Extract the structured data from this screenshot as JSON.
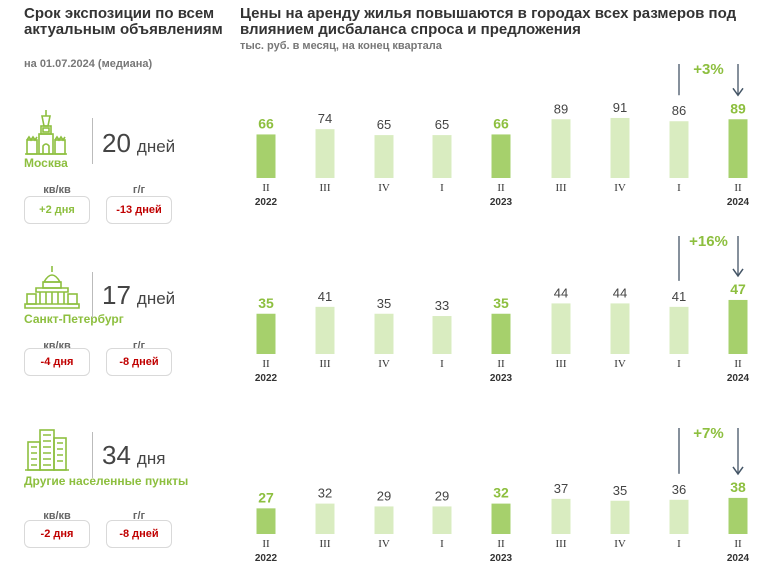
{
  "left_panel": {
    "title": "Срок экспозиции по всем актуальным объявлениям",
    "subtitle": "на 01.07.2024 (медиана)",
    "qq_label": "кв/кв",
    "yy_label": "г/г"
  },
  "header": {
    "title": "Цены на аренду жилья повышаются в городах всех размеров под влиянием дисбаланса спроса и предложения",
    "subtitle": "тыс. руб. в месяц, на конец квартала"
  },
  "colors": {
    "bar_light": "#d9ecc0",
    "bar_dark": "#a6d06c",
    "label_accent": "#8dbf3f",
    "positive": "#8dbf3f",
    "negative": "#c00000",
    "arrow": "#445566"
  },
  "cities": [
    {
      "name": "Москва",
      "icon": "kremlin-tower-icon",
      "days_value": "20",
      "days_unit": "дней",
      "qq_change": "+2 дня",
      "qq_sign": "pos",
      "yy_change": "-13 дней",
      "yy_sign": "neg",
      "growth_label": "+3%"
    },
    {
      "name": "Санкт-Петербург",
      "icon": "palace-dome-icon",
      "days_value": "17",
      "days_unit": "дней",
      "qq_change": "-4 дня",
      "qq_sign": "neg",
      "yy_change": "-8 дней",
      "yy_sign": "neg",
      "growth_label": "+16%"
    },
    {
      "name": "Другие населенные пункты",
      "icon": "city-buildings-icon",
      "days_value": "34",
      "days_unit": "дня",
      "qq_change": "-2 дня",
      "qq_sign": "neg",
      "yy_change": "-8 дней",
      "yy_sign": "neg",
      "growth_label": "+7%"
    }
  ],
  "chart_data": [
    {
      "type": "bar",
      "quarters": [
        "II",
        "III",
        "IV",
        "I",
        "II",
        "III",
        "IV",
        "I",
        "II"
      ],
      "years": [
        "2022",
        "",
        "",
        "",
        "2023",
        "",
        "",
        "",
        "2024"
      ],
      "values": [
        66,
        74,
        65,
        65,
        66,
        89,
        91,
        86,
        89
      ],
      "highlight": [
        true,
        false,
        false,
        false,
        true,
        false,
        false,
        false,
        true
      ],
      "annotation": "+3%"
    },
    {
      "type": "bar",
      "quarters": [
        "II",
        "III",
        "IV",
        "I",
        "II",
        "III",
        "IV",
        "I",
        "II"
      ],
      "years": [
        "2022",
        "",
        "",
        "",
        "2023",
        "",
        "",
        "",
        "2024"
      ],
      "values": [
        35,
        41,
        35,
        33,
        35,
        44,
        44,
        41,
        47
      ],
      "highlight": [
        true,
        false,
        false,
        false,
        true,
        false,
        false,
        false,
        true
      ],
      "annotation": "+16%"
    },
    {
      "type": "bar",
      "quarters": [
        "II",
        "III",
        "IV",
        "I",
        "II",
        "III",
        "IV",
        "I",
        "II"
      ],
      "years": [
        "2022",
        "",
        "",
        "",
        "2023",
        "",
        "",
        "",
        "2024"
      ],
      "values": [
        27,
        32,
        29,
        29,
        32,
        37,
        35,
        36,
        38
      ],
      "highlight": [
        true,
        false,
        false,
        false,
        true,
        false,
        false,
        false,
        true
      ],
      "annotation": "+7%"
    }
  ]
}
